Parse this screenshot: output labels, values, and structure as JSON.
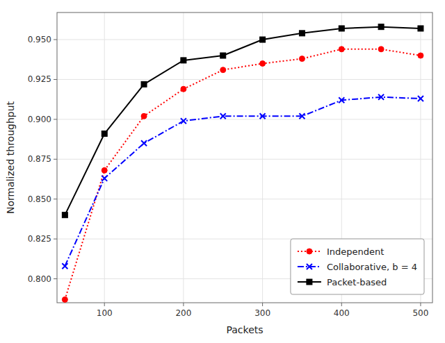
{
  "chart_data": {
    "type": "line",
    "xlabel": "Packets",
    "ylabel": "Normalized throughput",
    "x": [
      50,
      100,
      150,
      200,
      250,
      300,
      350,
      400,
      450,
      500
    ],
    "series": [
      {
        "name": "Independent",
        "color": "#ff0000",
        "marker": "circle",
        "line_style": "dotted",
        "values": [
          0.787,
          0.868,
          0.902,
          0.919,
          0.931,
          0.935,
          0.938,
          0.944,
          0.944,
          0.94
        ]
      },
      {
        "name": "Collaborative, b = 4",
        "color": "#0000ff",
        "marker": "x",
        "line_style": "dashdot",
        "values": [
          0.808,
          0.863,
          0.885,
          0.899,
          0.902,
          0.902,
          0.902,
          0.912,
          0.914,
          0.913
        ]
      },
      {
        "name": "Packet-based",
        "color": "#000000",
        "marker": "square",
        "line_style": "solid",
        "values": [
          0.84,
          0.891,
          0.922,
          0.937,
          0.94,
          0.95,
          0.954,
          0.957,
          0.958,
          0.957
        ]
      }
    ],
    "xlim": [
      40,
      515
    ],
    "ylim": [
      0.785,
      0.967
    ],
    "xticks": [
      100,
      200,
      300,
      400,
      500
    ],
    "yticks": [
      {
        "value": 0.8,
        "label": "0.800"
      },
      0.825,
      {
        "value": 0.85,
        "label": "0.850"
      },
      0.875,
      {
        "value": 0.9,
        "label": "0.900"
      },
      0.925,
      {
        "value": 0.95,
        "label": "0.950"
      }
    ],
    "grid": true,
    "legend": "lower right"
  }
}
